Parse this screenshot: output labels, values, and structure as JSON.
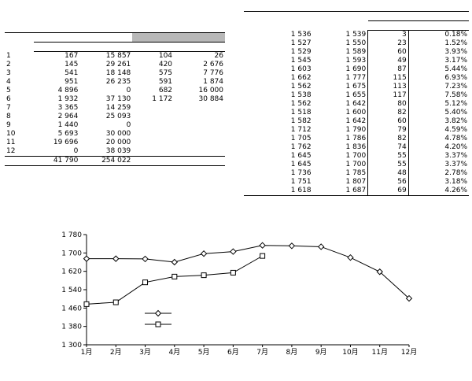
{
  "left_table": {
    "title": "",
    "col_month": "",
    "group_2008": "",
    "group_2009": "",
    "sub_import": "",
    "sub_export": "",
    "rows": [
      {
        "month": "1",
        "imp08": "167",
        "exp08": "15 857",
        "imp09": "104",
        "exp09": "26"
      },
      {
        "month": "2",
        "imp08": "145",
        "exp08": "29 261",
        "imp09": "420",
        "exp09": "2 676"
      },
      {
        "month": "3",
        "imp08": "541",
        "exp08": "18 148",
        "imp09": "575",
        "exp09": "7 776"
      },
      {
        "month": "4",
        "imp08": "951",
        "exp08": "26 235",
        "imp09": "591",
        "exp09": "1 874"
      },
      {
        "month": "5",
        "imp08": "4 896",
        "exp08": "0",
        "imp09": "682",
        "exp09": "16 000"
      },
      {
        "month": "6",
        "imp08": "1 932",
        "exp08": "37 130",
        "imp09": "1 172",
        "exp09": "30 884"
      },
      {
        "month": "7",
        "imp08": "3 365",
        "exp08": "14 259",
        "imp09": "",
        "exp09": ""
      },
      {
        "month": "8",
        "imp08": "2 964",
        "exp08": "25 093",
        "imp09": "",
        "exp09": ""
      },
      {
        "month": "9",
        "imp08": "1 440",
        "exp08": "0",
        "imp09": "",
        "exp09": ""
      },
      {
        "month": "10",
        "imp08": "5 693",
        "exp08": "30 000",
        "imp09": "",
        "exp09": ""
      },
      {
        "month": "11",
        "imp08": "19 696",
        "exp08": "20 000",
        "imp09": "",
        "exp09": ""
      },
      {
        "month": "12",
        "imp08": "0",
        "exp08": "38 039",
        "imp09": "",
        "exp09": ""
      }
    ],
    "total": {
      "label": "",
      "imp08": "41 790",
      "exp08": "254 022"
    },
    "note": ""
  },
  "right_table": {
    "title": "",
    "col_market": "",
    "col_type": "",
    "col_june": "",
    "col_july": "",
    "col_change": "",
    "col_diff": "",
    "col_mom": "",
    "rows": [
      {
        "market": "",
        "type": "",
        "june": "1 536",
        "july": "1 539",
        "diff": "3",
        "mom": "0.18%"
      },
      {
        "market": "",
        "type": "",
        "june": "1 527",
        "july": "1 550",
        "diff": "23",
        "mom": "1.52%"
      },
      {
        "market": "",
        "type": "",
        "june": "1 529",
        "july": "1 589",
        "diff": "60",
        "mom": "3.93%"
      },
      {
        "market": "",
        "type": "",
        "june": "1 545",
        "july": "1 593",
        "diff": "49",
        "mom": "3.17%"
      },
      {
        "market": "",
        "type": "",
        "june": "1 603",
        "july": "1 690",
        "diff": "87",
        "mom": "5.44%"
      },
      {
        "market": "",
        "type": "",
        "june": "1 662",
        "july": "1 777",
        "diff": "115",
        "mom": "6.93%"
      },
      {
        "market": "",
        "type": "",
        "june": "1 562",
        "july": "1 675",
        "diff": "113",
        "mom": "7.23%"
      },
      {
        "market": "",
        "type": "",
        "june": "1 538",
        "july": "1 655",
        "diff": "117",
        "mom": "7.58%"
      },
      {
        "market": "",
        "type": "",
        "june": "1 562",
        "july": "1 642",
        "diff": "80",
        "mom": "5.12%"
      },
      {
        "market": "",
        "type": "",
        "june": "1 518",
        "july": "1 600",
        "diff": "82",
        "mom": "5.40%"
      },
      {
        "market": "",
        "type": "",
        "june": "1 582",
        "july": "1 642",
        "diff": "60",
        "mom": "3.82%"
      },
      {
        "market": "",
        "type": "",
        "june": "1 712",
        "july": "1 790",
        "diff": "79",
        "mom": "4.59%"
      },
      {
        "market": "",
        "type": "",
        "june": "1 705",
        "july": "1 786",
        "diff": "82",
        "mom": "4.78%"
      },
      {
        "market": "",
        "type": "",
        "june": "1 762",
        "july": "1 836",
        "diff": "74",
        "mom": "4.20%"
      },
      {
        "market": "",
        "type": "",
        "june": "1 645",
        "july": "1 700",
        "diff": "55",
        "mom": "3.37%"
      },
      {
        "market": "",
        "type": "",
        "june": "1 645",
        "july": "1 700",
        "diff": "55",
        "mom": "3.37%"
      },
      {
        "market": "",
        "type": "",
        "june": "1 736",
        "july": "1 785",
        "diff": "48",
        "mom": "2.78%"
      },
      {
        "market": "",
        "type": "",
        "june": "1 751",
        "july": "1 807",
        "diff": "56",
        "mom": "3.18%"
      },
      {
        "market": "",
        "type": "",
        "june": "1 618",
        "july": "1 687",
        "diff": "69",
        "mom": "4.26%"
      }
    ],
    "note": ""
  },
  "chart_data": {
    "type": "line",
    "title": "",
    "xlabel": "",
    "ylabel": "",
    "tick_suffix": "月",
    "categories": [
      "1",
      "2",
      "3",
      "4",
      "5",
      "6",
      "7",
      "8",
      "9",
      "10",
      "11",
      "12"
    ],
    "ylim": [
      1300,
      1780
    ],
    "yticks": [
      1300,
      1380,
      1460,
      1540,
      1620,
      1700,
      1780
    ],
    "ytick_labels": [
      "1 300",
      "1 380",
      "1 460",
      "1 540",
      "1 620",
      "1 700",
      "1 780"
    ],
    "series": [
      {
        "name": "",
        "values": [
          1675,
          1675,
          1674,
          1660,
          1697,
          1706,
          1733,
          1731,
          1727,
          1680,
          1618,
          1502
        ],
        "marker": "diamond"
      },
      {
        "name": "",
        "values": [
          1477,
          1485,
          1572,
          1597,
          1603,
          1614,
          1687,
          null,
          null,
          null,
          null,
          null
        ],
        "marker": "square"
      }
    ],
    "legend_position": "bottom-left",
    "grid": false,
    "note": ""
  },
  "colors": {
    "line": "#000000",
    "marker_fill": "#ffffff"
  }
}
